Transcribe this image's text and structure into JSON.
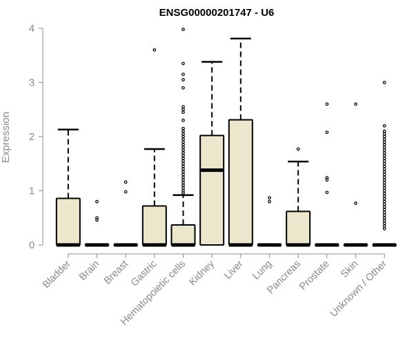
{
  "chart_data": {
    "type": "boxplot",
    "title": "ENSG00000201747 - U6",
    "xlabel": "",
    "ylabel": "Expression",
    "ylim": [
      0,
      4
    ],
    "yticks": [
      0,
      1,
      2,
      3,
      4
    ],
    "grid": false,
    "box_color": "#ece6cd",
    "categories": [
      "Bladder",
      "Brain",
      "Breast",
      "Gastric",
      "Hematopoietic cells",
      "Kidney",
      "Liver",
      "Lung",
      "Pancreas",
      "Prostate",
      "Skin",
      "Unknown / Other"
    ],
    "series": [
      {
        "label": "Bladder",
        "min": 0,
        "q1": 0,
        "median": 0,
        "q3": 0.86,
        "max": 2.13,
        "outliers": []
      },
      {
        "label": "Brain",
        "min": 0,
        "q1": 0,
        "median": 0,
        "q3": 0,
        "max": 0,
        "outliers": [
          0.46,
          0.5,
          0.8
        ]
      },
      {
        "label": "Breast",
        "min": 0,
        "q1": 0,
        "median": 0,
        "q3": 0,
        "max": 0,
        "outliers": [
          0.98,
          1.16
        ]
      },
      {
        "label": "Gastric",
        "min": 0,
        "q1": 0,
        "median": 0,
        "q3": 0.72,
        "max": 1.77,
        "outliers": [
          3.6
        ]
      },
      {
        "label": "Hematopoietic cells",
        "min": 0,
        "q1": 0,
        "median": 0,
        "q3": 0.37,
        "max": 0.92,
        "outliers": [
          0.96,
          1.0,
          1.05,
          1.1,
          1.15,
          1.2,
          1.25,
          1.3,
          1.35,
          1.4,
          1.45,
          1.5,
          1.55,
          1.6,
          1.65,
          1.7,
          1.75,
          1.8,
          1.85,
          1.9,
          1.95,
          2.0,
          2.05,
          2.1,
          2.15,
          2.3,
          2.45,
          2.5,
          2.55,
          2.9,
          3.05,
          3.15,
          3.35,
          3.98
        ]
      },
      {
        "label": "Kidney",
        "min": 0,
        "q1": 0,
        "median": 1.38,
        "q3": 2.02,
        "max": 3.38,
        "outliers": []
      },
      {
        "label": "Liver",
        "min": 0,
        "q1": 0,
        "median": 0,
        "q3": 2.31,
        "max": 3.81,
        "outliers": []
      },
      {
        "label": "Lung",
        "min": 0,
        "q1": 0,
        "median": 0,
        "q3": 0,
        "max": 0,
        "outliers": [
          0.8,
          0.87
        ]
      },
      {
        "label": "Pancreas",
        "min": 0,
        "q1": 0,
        "median": 0,
        "q3": 0.62,
        "max": 1.54,
        "outliers": [
          1.77
        ]
      },
      {
        "label": "Prostate",
        "min": 0,
        "q1": 0,
        "median": 0,
        "q3": 0,
        "max": 0,
        "outliers": [
          0.97,
          1.2,
          1.24,
          2.08,
          2.6
        ]
      },
      {
        "label": "Skin",
        "min": 0,
        "q1": 0,
        "median": 0,
        "q3": 0,
        "max": 0,
        "outliers": [
          0.77,
          2.6
        ]
      },
      {
        "label": "Unknown / Other",
        "min": 0,
        "q1": 0,
        "median": 0,
        "q3": 0,
        "max": 0,
        "outliers": [
          0.3,
          0.35,
          0.4,
          0.45,
          0.5,
          0.55,
          0.6,
          0.65,
          0.7,
          0.75,
          0.8,
          0.85,
          0.9,
          0.95,
          1.0,
          1.05,
          1.1,
          1.15,
          1.2,
          1.25,
          1.3,
          1.35,
          1.4,
          1.45,
          1.5,
          1.55,
          1.6,
          1.65,
          1.7,
          1.75,
          1.8,
          1.85,
          1.9,
          1.95,
          2.0,
          2.05,
          2.1,
          2.2,
          3.0
        ]
      }
    ]
  }
}
